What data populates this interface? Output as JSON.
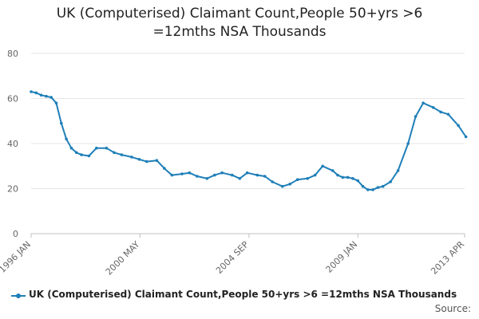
{
  "chart_data": {
    "type": "line",
    "title": "UK (Computerised) Claimant Count,People 50+yrs >6 =12mths NSA Thousands",
    "title_lines": [
      "UK (Computerised) Claimant Count,People 50+yrs >6",
      "=12mths NSA Thousands"
    ],
    "xlabel": "",
    "ylabel": "",
    "ylim": [
      0,
      80
    ],
    "yticks": [
      "0",
      "20",
      "40",
      "60",
      "80"
    ],
    "xticks": [
      "1996 JAN",
      "2000 MAY",
      "2004 SEP",
      "2009 JAN",
      "2013 APR"
    ],
    "grid": true,
    "legend_position": "bottom",
    "series": [
      {
        "name": "UK (Computerised) Claimant Count,People 50+yrs >6 =12mths NSA Thousands",
        "color": "#1f7fb8",
        "x": [
          1996.0,
          1996.2,
          1996.4,
          1996.6,
          1996.8,
          1997.0,
          1997.2,
          1997.4,
          1997.6,
          1997.8,
          1998.0,
          1998.3,
          1998.6,
          1999.0,
          1999.3,
          1999.6,
          2000.0,
          2000.3,
          2000.6,
          2001.0,
          2001.3,
          2001.6,
          2002.0,
          2002.3,
          2002.6,
          2003.0,
          2003.3,
          2003.6,
          2004.0,
          2004.3,
          2004.6,
          2005.0,
          2005.3,
          2005.6,
          2006.0,
          2006.3,
          2006.6,
          2007.0,
          2007.3,
          2007.6,
          2008.0,
          2008.2,
          2008.4,
          2008.6,
          2008.8,
          2009.0,
          2009.2,
          2009.4,
          2009.6,
          2009.8,
          2010.0,
          2010.3,
          2010.6,
          2011.0,
          2011.3,
          2011.6,
          2012.0,
          2012.3,
          2012.6,
          2013.0,
          2013.3
        ],
        "values": [
          63,
          62.5,
          61.5,
          61,
          60.5,
          58,
          49,
          42,
          38,
          36,
          35,
          34.5,
          38,
          38,
          36,
          35,
          34,
          33,
          32,
          32.5,
          29,
          26,
          26.5,
          27,
          25.5,
          24.5,
          26,
          27,
          26,
          24.5,
          27,
          26,
          25.5,
          23,
          21,
          22,
          24,
          24.5,
          26,
          30,
          28,
          26,
          25,
          25,
          24.5,
          23.5,
          21,
          19.5,
          19.5,
          20.5,
          21,
          23,
          28,
          40,
          52,
          58,
          56,
          54,
          53,
          48,
          43
        ]
      }
    ]
  },
  "legend": {
    "label": "UK (Computerised) Claimant Count,People 50+yrs >6 =12mths NSA Thousands"
  },
  "source": {
    "label": "Source:"
  }
}
